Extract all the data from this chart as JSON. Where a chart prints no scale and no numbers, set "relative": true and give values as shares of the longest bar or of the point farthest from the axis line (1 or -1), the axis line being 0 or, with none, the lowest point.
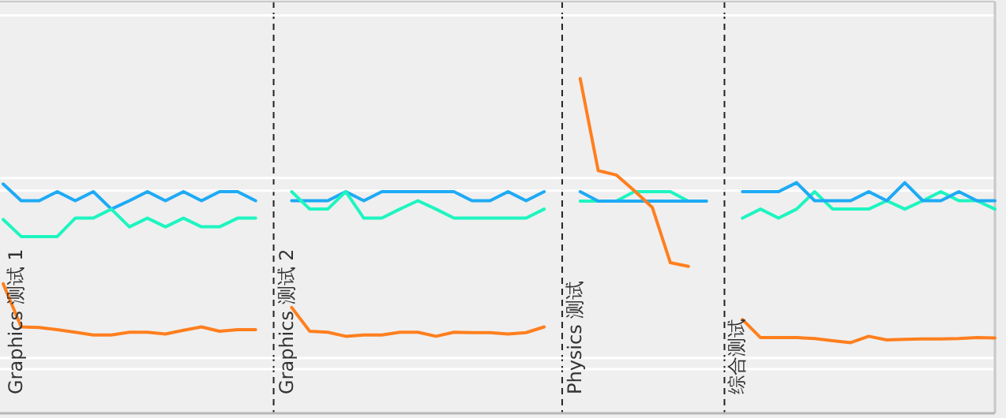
{
  "chart_data": {
    "type": "line",
    "relative": true,
    "grid": true,
    "categories": [
      null,
      null,
      null,
      null,
      null,
      null,
      null,
      null,
      null,
      null,
      null,
      null,
      null,
      null,
      null,
      null,
      null,
      null,
      null,
      null,
      null,
      null,
      null,
      null,
      null,
      null,
      null,
      null,
      null,
      null,
      null,
      null,
      null,
      null,
      null,
      null,
      null,
      null,
      null,
      null,
      null,
      null,
      null,
      null,
      null,
      null,
      null,
      null,
      null,
      null,
      null,
      null,
      null,
      null,
      null,
      null
    ],
    "series": [
      {
        "color": "#1eaaf5",
        "values": [
          0.685,
          0.635,
          0.635,
          0.662,
          0.635,
          0.662,
          0.61,
          0.635,
          0.662,
          0.635,
          0.662,
          0.635,
          0.662,
          0.662,
          0.635,
          null,
          null,
          null,
          null,
          null,
          null,
          null,
          null,
          null,
          null,
          null,
          null,
          null,
          null,
          null,
          null,
          null,
          null,
          null,
          null,
          null,
          null,
          null,
          null,
          null,
          null,
          null,
          null,
          null,
          null,
          null,
          null,
          null,
          null,
          null,
          null,
          null,
          null,
          null,
          null,
          null
        ]
      },
      {
        "color": "#1ef5c0",
        "values": [
          0.579,
          0.528,
          0.528,
          0.528,
          0.583,
          0.583,
          0.61,
          0.557,
          0.583,
          0.557,
          0.583,
          0.557,
          0.557,
          0.583,
          0.583,
          null,
          null,
          null,
          null,
          null,
          null,
          null,
          null,
          null,
          null,
          null,
          null,
          null,
          null,
          null,
          null,
          null,
          null,
          null,
          null,
          null,
          null,
          null,
          null,
          null,
          null,
          null,
          null,
          null,
          null,
          null,
          null,
          null,
          null,
          null,
          null,
          null,
          null,
          null,
          null,
          null
        ]
      },
      {
        "color": "#ff7f1e",
        "values": [
          0.387,
          0.258,
          0.256,
          0.25,
          0.242,
          0.234,
          0.234,
          0.242,
          0.242,
          0.237,
          0.248,
          0.258,
          0.245,
          0.25,
          0.25,
          null,
          null,
          null,
          null,
          null,
          null,
          null,
          null,
          null,
          null,
          null,
          null,
          null,
          null,
          null,
          null,
          null,
          null,
          null,
          null,
          null,
          null,
          null,
          null,
          null,
          null,
          null,
          null,
          null,
          null,
          null,
          null,
          null,
          null,
          null,
          null,
          null,
          null,
          null,
          null,
          null
        ]
      },
      {
        "color": "#1eaaf5",
        "values": [
          null,
          null,
          null,
          null,
          null,
          null,
          null,
          null,
          null,
          null,
          null,
          null,
          null,
          null,
          null,
          null,
          0.635,
          0.635,
          0.635,
          0.662,
          0.635,
          0.662,
          0.662,
          0.662,
          0.662,
          0.662,
          0.635,
          0.635,
          0.662,
          0.635,
          0.662,
          null,
          null,
          null,
          null,
          null,
          null,
          null,
          null,
          null,
          null,
          null,
          null,
          null,
          null,
          null,
          null,
          null,
          null,
          null,
          null,
          null,
          null,
          null,
          null,
          null
        ]
      },
      {
        "color": "#1ef5c0",
        "values": [
          null,
          null,
          null,
          null,
          null,
          null,
          null,
          null,
          null,
          null,
          null,
          null,
          null,
          null,
          null,
          null,
          0.662,
          0.61,
          0.61,
          0.662,
          0.583,
          0.583,
          0.61,
          0.635,
          0.61,
          0.583,
          0.583,
          0.583,
          0.583,
          0.583,
          0.61,
          null,
          null,
          null,
          null,
          null,
          null,
          null,
          null,
          null,
          null,
          null,
          null,
          null,
          null,
          null,
          null,
          null,
          null,
          null,
          null,
          null,
          null,
          null,
          null,
          null
        ]
      },
      {
        "color": "#ff7f1e",
        "values": [
          null,
          null,
          null,
          null,
          null,
          null,
          null,
          null,
          null,
          null,
          null,
          null,
          null,
          null,
          null,
          null,
          0.316,
          0.245,
          0.242,
          0.23,
          0.234,
          0.234,
          0.242,
          0.242,
          0.23,
          0.242,
          0.241,
          0.241,
          0.237,
          0.241,
          0.258,
          null,
          null,
          null,
          null,
          null,
          null,
          null,
          null,
          null,
          null,
          null,
          null,
          null,
          null,
          null,
          null,
          null,
          null,
          null,
          null,
          null,
          null,
          null,
          null,
          null
        ]
      },
      {
        "color": "#1ef5c0",
        "values": [
          null,
          null,
          null,
          null,
          null,
          null,
          null,
          null,
          null,
          null,
          null,
          null,
          null,
          null,
          null,
          null,
          null,
          null,
          null,
          null,
          null,
          null,
          null,
          null,
          null,
          null,
          null,
          null,
          null,
          null,
          null,
          null,
          0.634,
          0.634,
          0.634,
          0.662,
          0.662,
          0.662,
          0.634,
          0.634,
          null,
          null,
          null,
          null,
          null,
          null,
          null,
          null,
          null,
          null,
          null,
          null,
          null,
          null,
          null,
          null
        ]
      },
      {
        "color": "#1eaaf5",
        "values": [
          null,
          null,
          null,
          null,
          null,
          null,
          null,
          null,
          null,
          null,
          null,
          null,
          null,
          null,
          null,
          null,
          null,
          null,
          null,
          null,
          null,
          null,
          null,
          null,
          null,
          null,
          null,
          null,
          null,
          null,
          null,
          null,
          0.662,
          0.634,
          0.634,
          0.634,
          0.634,
          0.634,
          0.634,
          0.634,
          null,
          null,
          null,
          null,
          null,
          null,
          null,
          null,
          null,
          null,
          null,
          null,
          null,
          null,
          null,
          null
        ]
      },
      {
        "color": "#ff7f1e",
        "values": [
          null,
          null,
          null,
          null,
          null,
          null,
          null,
          null,
          null,
          null,
          null,
          null,
          null,
          null,
          null,
          null,
          null,
          null,
          null,
          null,
          null,
          null,
          null,
          null,
          null,
          null,
          null,
          null,
          null,
          null,
          null,
          null,
          1.0,
          0.725,
          0.712,
          0.665,
          0.615,
          0.45,
          0.439,
          null,
          null,
          null,
          null,
          null,
          null,
          null,
          null,
          null,
          null,
          null,
          null,
          null,
          null,
          null,
          null,
          null
        ]
      },
      {
        "color": "#1ef5c0",
        "values": [
          null,
          null,
          null,
          null,
          null,
          null,
          null,
          null,
          null,
          null,
          null,
          null,
          null,
          null,
          null,
          null,
          null,
          null,
          null,
          null,
          null,
          null,
          null,
          null,
          null,
          null,
          null,
          null,
          null,
          null,
          null,
          null,
          null,
          null,
          null,
          null,
          null,
          null,
          null,
          null,
          null,
          0.583,
          0.61,
          0.583,
          0.61,
          0.662,
          0.61,
          0.61,
          0.61,
          0.635,
          0.61,
          0.635,
          0.662,
          0.635,
          0.635,
          0.61
        ]
      },
      {
        "color": "#1eaaf5",
        "values": [
          null,
          null,
          null,
          null,
          null,
          null,
          null,
          null,
          null,
          null,
          null,
          null,
          null,
          null,
          null,
          null,
          null,
          null,
          null,
          null,
          null,
          null,
          null,
          null,
          null,
          null,
          null,
          null,
          null,
          null,
          null,
          null,
          null,
          null,
          null,
          null,
          null,
          null,
          null,
          null,
          null,
          0.662,
          0.662,
          0.662,
          0.689,
          0.635,
          0.635,
          0.635,
          0.662,
          0.635,
          0.689,
          0.635,
          0.635,
          0.662,
          0.635,
          0.635
        ]
      },
      {
        "color": "#ff7f1e",
        "values": [
          null,
          null,
          null,
          null,
          null,
          null,
          null,
          null,
          null,
          null,
          null,
          null,
          null,
          null,
          null,
          null,
          null,
          null,
          null,
          null,
          null,
          null,
          null,
          null,
          null,
          null,
          null,
          null,
          null,
          null,
          null,
          null,
          null,
          null,
          null,
          null,
          null,
          null,
          null,
          null,
          null,
          0.28,
          0.226,
          0.226,
          0.226,
          0.223,
          0.217,
          0.211,
          0.23,
          0.219,
          0.221,
          0.222,
          0.222,
          0.223,
          0.226,
          0.225
        ]
      }
    ],
    "ref_lines": [
      {
        "axis": "y",
        "value": 1.189,
        "label": null,
        "color": "#ffffff",
        "line_style": "solid"
      },
      {
        "axis": "y",
        "value": 0.703,
        "label": null,
        "color": "#ffffff",
        "line_style": "solid"
      },
      {
        "axis": "y",
        "value": 0.665,
        "label": null,
        "color": "#ffffff",
        "line_style": "solid"
      },
      {
        "axis": "y",
        "value": 0.165,
        "label": null,
        "color": "#ffffff",
        "line_style": "solid"
      },
      {
        "axis": "y",
        "value": 0.132,
        "label": null,
        "color": "#ffffff",
        "line_style": "solid"
      }
    ],
    "annotations": [
      "Graphics 测试 1",
      "Graphics 测试 2",
      "Physics 测试",
      "综合测试"
    ]
  }
}
